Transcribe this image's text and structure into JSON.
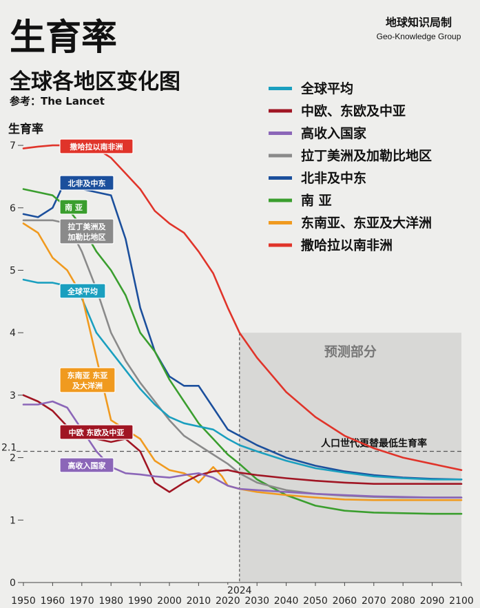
{
  "header": {
    "title": "生育率",
    "subtitle": "全球各地区变化图",
    "source": "参考：The Lancet",
    "brand": "地球知识局制",
    "brand_en": "Geo-Knowledge Group"
  },
  "colors": {
    "global": "#1a9fbf",
    "ceeca": "#a01523",
    "high_income": "#8b66b8",
    "latam": "#8a8a8a",
    "mena": "#1b4f9c",
    "south_asia": "#3a9e2e",
    "seao": "#f09a1f",
    "ssa": "#e0342a"
  },
  "chart_data": {
    "type": "line",
    "ylabel": "生育率",
    "xlim": [
      1950,
      2100
    ],
    "ylim": [
      0,
      7
    ],
    "x_ticks": [
      1950,
      1960,
      1970,
      1980,
      1990,
      2000,
      2010,
      2020,
      2030,
      2040,
      2050,
      2060,
      2070,
      2080,
      2090,
      2100
    ],
    "y_ticks": [
      0,
      1,
      2,
      3,
      4,
      5,
      6,
      7
    ],
    "y_tick_labels": [
      "0",
      "1",
      "2",
      "3",
      "4",
      "5",
      "6",
      "7"
    ],
    "reference_line": {
      "y": 2.1,
      "label": "2.1",
      "text": "人口世代更替最低生育率"
    },
    "forecast": {
      "start": 2024,
      "end": 2100,
      "label": "预测部分",
      "start_label": "2024"
    },
    "series": [
      {
        "key": "ssa",
        "name": "撒哈拉以南非洲",
        "tag": "撒哈拉以南非洲",
        "color_key": "ssa",
        "x": [
          1950,
          1955,
          1960,
          1965,
          1970,
          1975,
          1980,
          1985,
          1990,
          1995,
          2000,
          2005,
          2010,
          2015,
          2020,
          2024,
          2030,
          2040,
          2050,
          2060,
          2070,
          2080,
          2090,
          2100
        ],
        "y": [
          6.95,
          6.98,
          7.0,
          7.0,
          7.0,
          6.95,
          6.8,
          6.55,
          6.3,
          5.95,
          5.75,
          5.6,
          5.3,
          4.95,
          4.4,
          4.0,
          3.6,
          3.05,
          2.65,
          2.35,
          2.15,
          2.0,
          1.9,
          1.8
        ]
      },
      {
        "key": "mena",
        "name": "北非及中东",
        "tag": "北非及中东",
        "color_key": "mena",
        "x": [
          1950,
          1955,
          1960,
          1965,
          1970,
          1975,
          1980,
          1985,
          1990,
          1995,
          2000,
          2005,
          2010,
          2015,
          2020,
          2024,
          2030,
          2040,
          2050,
          2060,
          2070,
          2080,
          2090,
          2100
        ],
        "y": [
          5.9,
          5.85,
          6.0,
          6.5,
          6.3,
          6.25,
          6.2,
          5.5,
          4.4,
          3.7,
          3.3,
          3.15,
          3.15,
          2.8,
          2.45,
          2.35,
          2.2,
          2.0,
          1.87,
          1.78,
          1.72,
          1.68,
          1.66,
          1.65
        ]
      },
      {
        "key": "south_asia",
        "name": "南亚",
        "tag": "南 亚",
        "color_key": "south_asia",
        "x": [
          1950,
          1955,
          1960,
          1965,
          1970,
          1975,
          1980,
          1985,
          1990,
          1995,
          2000,
          2005,
          2010,
          2015,
          2020,
          2024,
          2030,
          2040,
          2050,
          2060,
          2070,
          2080,
          2090,
          2100
        ],
        "y": [
          6.3,
          6.25,
          6.2,
          6.0,
          5.7,
          5.3,
          5.0,
          4.6,
          4.0,
          3.7,
          3.25,
          2.9,
          2.55,
          2.3,
          2.05,
          1.9,
          1.65,
          1.4,
          1.23,
          1.15,
          1.12,
          1.11,
          1.1,
          1.1
        ]
      },
      {
        "key": "latam",
        "name": "拉丁美洲及加勒比地区",
        "tag_lines": [
          "拉丁美洲及",
          "加勒比地区"
        ],
        "color_key": "latam",
        "x": [
          1950,
          1955,
          1960,
          1965,
          1970,
          1975,
          1980,
          1985,
          1990,
          1995,
          2000,
          2005,
          2010,
          2015,
          2020,
          2024,
          2030,
          2040,
          2050,
          2060,
          2070,
          2080,
          2090,
          2100
        ],
        "y": [
          5.8,
          5.8,
          5.8,
          5.75,
          5.3,
          4.7,
          4.0,
          3.55,
          3.2,
          2.9,
          2.6,
          2.35,
          2.2,
          2.05,
          1.9,
          1.75,
          1.6,
          1.48,
          1.42,
          1.39,
          1.37,
          1.36,
          1.36,
          1.36
        ]
      },
      {
        "key": "global",
        "name": "全球平均",
        "tag": "全球平均",
        "color_key": "global",
        "x": [
          1950,
          1955,
          1960,
          1965,
          1970,
          1975,
          1980,
          1985,
          1990,
          1995,
          2000,
          2005,
          2010,
          2015,
          2020,
          2024,
          2030,
          2040,
          2050,
          2060,
          2070,
          2080,
          2090,
          2100
        ],
        "y": [
          4.85,
          4.8,
          4.8,
          4.75,
          4.55,
          4.0,
          3.7,
          3.4,
          3.1,
          2.85,
          2.65,
          2.55,
          2.5,
          2.45,
          2.3,
          2.2,
          2.1,
          1.95,
          1.83,
          1.76,
          1.7,
          1.67,
          1.65,
          1.65
        ]
      },
      {
        "key": "seao",
        "name": "东南亚、东亚及大洋洲",
        "tag_lines": [
          "东南亚 东亚",
          "及大洋洲"
        ],
        "color_key": "seao",
        "x": [
          1950,
          1955,
          1960,
          1965,
          1970,
          1975,
          1980,
          1985,
          1990,
          1995,
          2000,
          2005,
          2008,
          2010,
          2012,
          2015,
          2018,
          2020,
          2024,
          2030,
          2040,
          2050,
          2060,
          2070,
          2080,
          2090,
          2100
        ],
        "y": [
          5.75,
          5.6,
          5.2,
          5.0,
          4.6,
          3.6,
          2.6,
          2.45,
          2.3,
          1.95,
          1.8,
          1.75,
          1.68,
          1.6,
          1.7,
          1.85,
          1.7,
          1.55,
          1.5,
          1.45,
          1.4,
          1.36,
          1.33,
          1.32,
          1.32,
          1.32,
          1.32
        ]
      },
      {
        "key": "ceeca",
        "name": "中欧、东欧及中亚",
        "tag": "中欧 东欧及中亚",
        "color_key": "ceeca",
        "x": [
          1950,
          1955,
          1960,
          1965,
          1970,
          1975,
          1980,
          1985,
          1990,
          1995,
          2000,
          2005,
          2010,
          2015,
          2020,
          2024,
          2030,
          2040,
          2050,
          2060,
          2070,
          2080,
          2090,
          2100
        ],
        "y": [
          3.0,
          2.9,
          2.75,
          2.5,
          2.4,
          2.3,
          2.25,
          2.3,
          2.1,
          1.6,
          1.45,
          1.6,
          1.72,
          1.78,
          1.8,
          1.76,
          1.72,
          1.67,
          1.63,
          1.6,
          1.58,
          1.58,
          1.58,
          1.58
        ]
      },
      {
        "key": "high_income",
        "name": "高收入国家",
        "tag": "高收入国家",
        "color_key": "high_income",
        "x": [
          1950,
          1955,
          1960,
          1965,
          1970,
          1975,
          1980,
          1985,
          1990,
          1995,
          2000,
          2005,
          2010,
          2015,
          2020,
          2024,
          2030,
          2040,
          2050,
          2060,
          2070,
          2080,
          2090,
          2100
        ],
        "y": [
          2.85,
          2.85,
          2.9,
          2.8,
          2.45,
          2.1,
          1.85,
          1.75,
          1.73,
          1.7,
          1.68,
          1.72,
          1.75,
          1.68,
          1.55,
          1.5,
          1.48,
          1.45,
          1.42,
          1.4,
          1.38,
          1.37,
          1.36,
          1.36
        ]
      }
    ],
    "legend": {
      "placement": "right",
      "items": [
        {
          "label": "全球平均",
          "color_key": "global"
        },
        {
          "label": "中欧、东欧及中亚",
          "color_key": "ceeca"
        },
        {
          "label": "高收入国家",
          "color_key": "high_income"
        },
        {
          "label": "拉丁美洲及加勒比地区",
          "color_key": "latam"
        },
        {
          "label": "北非及中东",
          "color_key": "mena"
        },
        {
          "label": "南 亚",
          "color_key": "south_asia"
        },
        {
          "label": "东南亚、东亚及大洋洲",
          "color_key": "seao"
        },
        {
          "label": "撒哈拉以南非洲",
          "color_key": "ssa"
        }
      ]
    }
  }
}
